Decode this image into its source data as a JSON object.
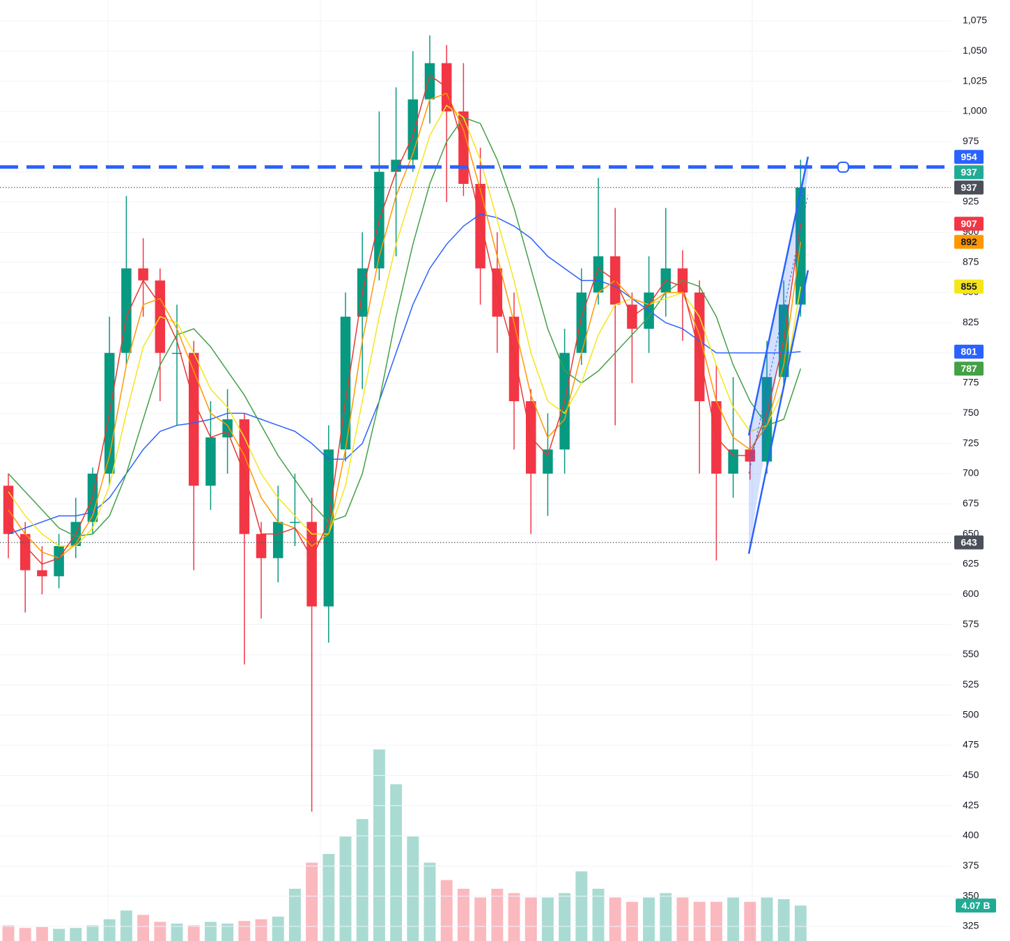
{
  "chart_data": {
    "type": "candlestick",
    "ylim": [
      325,
      1075
    ],
    "yticks": [
      325,
      350,
      375,
      400,
      425,
      450,
      475,
      500,
      525,
      550,
      575,
      600,
      625,
      650,
      675,
      700,
      725,
      750,
      775,
      800,
      825,
      850,
      875,
      900,
      925,
      950,
      975,
      {
        "value": 1000,
        "label": "1,000"
      },
      {
        "value": 1025,
        "label": "1,025"
      },
      {
        "value": 1050,
        "label": "1,050"
      },
      {
        "value": 1075,
        "label": "1,075"
      }
    ],
    "grid": true,
    "up_color": "#089981",
    "down_color": "#f23645",
    "candles": {
      "open": [
        690,
        650,
        620,
        615,
        640,
        660,
        700,
        800,
        870,
        860,
        800,
        800,
        690,
        730,
        745,
        650,
        630,
        660,
        660,
        590,
        720,
        830,
        870,
        950,
        960,
        1010,
        1040,
        1000,
        940,
        870,
        830,
        760,
        700,
        720,
        800,
        850,
        880,
        840,
        820,
        850,
        870,
        850,
        760,
        700,
        720,
        710,
        780,
        840
      ],
      "high": [
        700,
        660,
        640,
        650,
        680,
        705,
        830,
        930,
        895,
        870,
        840,
        810,
        760,
        770,
        750,
        660,
        690,
        700,
        680,
        740,
        850,
        900,
        1000,
        1020,
        1050,
        1063,
        1055,
        1040,
        970,
        900,
        850,
        770,
        750,
        820,
        870,
        945,
        920,
        850,
        880,
        920,
        885,
        860,
        790,
        780,
        740,
        810,
        860,
        960
      ],
      "low": [
        630,
        585,
        600,
        605,
        630,
        650,
        690,
        790,
        830,
        760,
        740,
        620,
        670,
        700,
        542,
        580,
        610,
        640,
        420,
        560,
        710,
        770,
        860,
        880,
        950,
        990,
        925,
        930,
        840,
        800,
        720,
        650,
        665,
        700,
        790,
        840,
        740,
        775,
        800,
        830,
        810,
        700,
        628,
        680,
        695,
        700,
        770,
        830
      ],
      "close": [
        650,
        620,
        615,
        640,
        660,
        700,
        800,
        870,
        860,
        800,
        800,
        690,
        730,
        745,
        650,
        630,
        660,
        660,
        590,
        720,
        830,
        870,
        950,
        960,
        1010,
        1040,
        1000,
        940,
        870,
        830,
        760,
        700,
        720,
        800,
        850,
        880,
        840,
        820,
        850,
        870,
        850,
        760,
        700,
        720,
        710,
        780,
        840,
        937
      ]
    },
    "series": [
      {
        "color": "#2962ff",
        "values": [
          650,
          655,
          660,
          665,
          665,
          668,
          680,
          700,
          720,
          735,
          740,
          742,
          745,
          750,
          750,
          745,
          740,
          735,
          725,
          712,
          712,
          725,
          760,
          800,
          840,
          870,
          890,
          905,
          915,
          912,
          905,
          895,
          880,
          870,
          860,
          860,
          855,
          845,
          835,
          825,
          820,
          810,
          800,
          800,
          800,
          800,
          800,
          801
        ]
      },
      {
        "color": "#43a047",
        "values": [
          700,
          685,
          670,
          655,
          648,
          650,
          665,
          700,
          745,
          790,
          815,
          820,
          805,
          785,
          765,
          740,
          715,
          695,
          675,
          660,
          665,
          700,
          760,
          830,
          890,
          940,
          975,
          995,
          990,
          960,
          920,
          870,
          820,
          785,
          775,
          785,
          800,
          815,
          830,
          850,
          860,
          855,
          830,
          790,
          760,
          740,
          745,
          787
        ]
      },
      {
        "color": "#f5e51b",
        "values": [
          685,
          665,
          650,
          640,
          640,
          655,
          690,
          750,
          805,
          830,
          825,
          800,
          770,
          755,
          730,
          700,
          680,
          665,
          650,
          650,
          690,
          760,
          830,
          890,
          935,
          980,
          1005,
          995,
          960,
          910,
          860,
          800,
          760,
          750,
          775,
          815,
          840,
          845,
          840,
          845,
          850,
          830,
          790,
          755,
          735,
          740,
          770,
          855
        ]
      },
      {
        "color": "#ff9800",
        "values": [
          670,
          650,
          635,
          630,
          642,
          665,
          715,
          790,
          840,
          845,
          820,
          785,
          750,
          740,
          715,
          680,
          660,
          655,
          640,
          650,
          720,
          810,
          880,
          930,
          965,
          1010,
          1015,
          985,
          935,
          880,
          825,
          765,
          730,
          745,
          800,
          850,
          860,
          845,
          840,
          850,
          850,
          815,
          760,
          730,
          720,
          740,
          790,
          892
        ]
      },
      {
        "color": "#e53935",
        "values": [
          660,
          640,
          625,
          630,
          650,
          680,
          750,
          830,
          860,
          840,
          810,
          760,
          730,
          735,
          700,
          650,
          650,
          655,
          630,
          660,
          760,
          850,
          910,
          950,
          980,
          1030,
          1020,
          970,
          910,
          850,
          800,
          730,
          715,
          760,
          830,
          870,
          860,
          830,
          840,
          860,
          855,
          800,
          730,
          715,
          715,
          750,
          810,
          907
        ]
      }
    ],
    "volume": [
      1.8,
      1.5,
      1.6,
      1.4,
      1.5,
      1.8,
      2.5,
      3.5,
      3.0,
      2.2,
      2.0,
      1.8,
      2.2,
      2.0,
      2.3,
      2.5,
      2.8,
      6,
      9,
      10,
      12,
      14,
      22,
      18,
      12,
      9,
      7,
      6,
      5,
      6,
      5.5,
      5,
      5,
      5.5,
      8,
      6,
      5,
      4.5,
      5,
      5.5,
      5,
      4.5,
      4.5,
      5,
      4.5,
      5,
      4.8,
      4.07
    ],
    "volume_ylim": [
      0,
      32
    ],
    "volume_label": {
      "value": 4.07,
      "label": "4.07 B",
      "color": "#22ab94"
    },
    "hlines": [
      {
        "value": 954,
        "style": "dashed",
        "color": "#2962ff"
      },
      {
        "value": 937,
        "style": "dotted",
        "color": "#4a4f5a"
      },
      {
        "value": 643,
        "style": "dotted",
        "color": "#4a4f5a"
      }
    ],
    "price_labels": [
      {
        "value": 643,
        "color": "#4a4f5a",
        "text_color": "#ffffff"
      },
      {
        "value": 787,
        "color": "#43a047",
        "text_color": "#ffffff"
      },
      {
        "value": 801,
        "color": "#2962ff",
        "text_color": "#ffffff"
      },
      {
        "value": 855,
        "color": "#f5e51b",
        "text_color": "#131722"
      },
      {
        "value": 892,
        "color": "#ff9800",
        "text_color": "#131722"
      },
      {
        "value": 907,
        "color": "#f23645",
        "text_color": "#ffffff"
      },
      {
        "value": 937,
        "color": "#4a4f5a",
        "text_color": "#ffffff"
      },
      {
        "value": 937,
        "color": "#22ab94",
        "text_color": "#ffffff"
      },
      {
        "value": 954,
        "color": "#2962ff",
        "text_color": "#ffffff"
      }
    ]
  }
}
